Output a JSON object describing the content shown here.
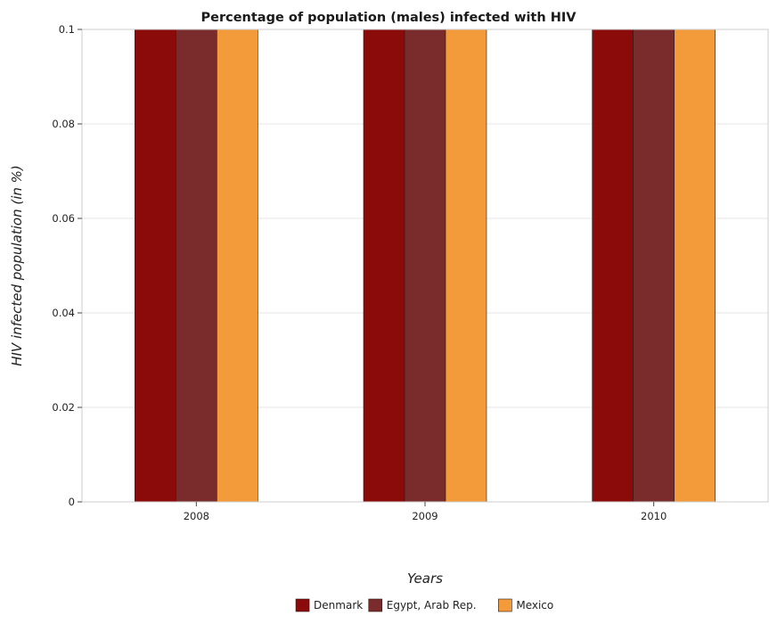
{
  "chart_data": {
    "type": "bar",
    "title": "Percentage of population (males) infected with HIV",
    "xlabel": "Years",
    "ylabel": "HIV infected population (in %)",
    "categories": [
      "2008",
      "2009",
      "2010"
    ],
    "series": [
      {
        "name": "Denmark",
        "values": [
          0.1,
          0.1,
          0.1
        ],
        "color": "#8b0a0a"
      },
      {
        "name": "Egypt, Arab Rep.",
        "values": [
          0.1,
          0.1,
          0.1
        ],
        "color": "#7a2c2c"
      },
      {
        "name": "Mexico",
        "values": [
          0.1,
          0.1,
          0.1
        ],
        "color": "#f39b3a"
      }
    ],
    "ylim": [
      0,
      0.1
    ],
    "yticks": [
      "0",
      "0.02",
      "0.04",
      "0.06",
      "0.08",
      "0.1"
    ],
    "ytick_values": [
      0,
      0.02,
      0.04,
      0.06,
      0.08,
      0.1
    ],
    "grid": true,
    "legend_position": "bottom"
  }
}
